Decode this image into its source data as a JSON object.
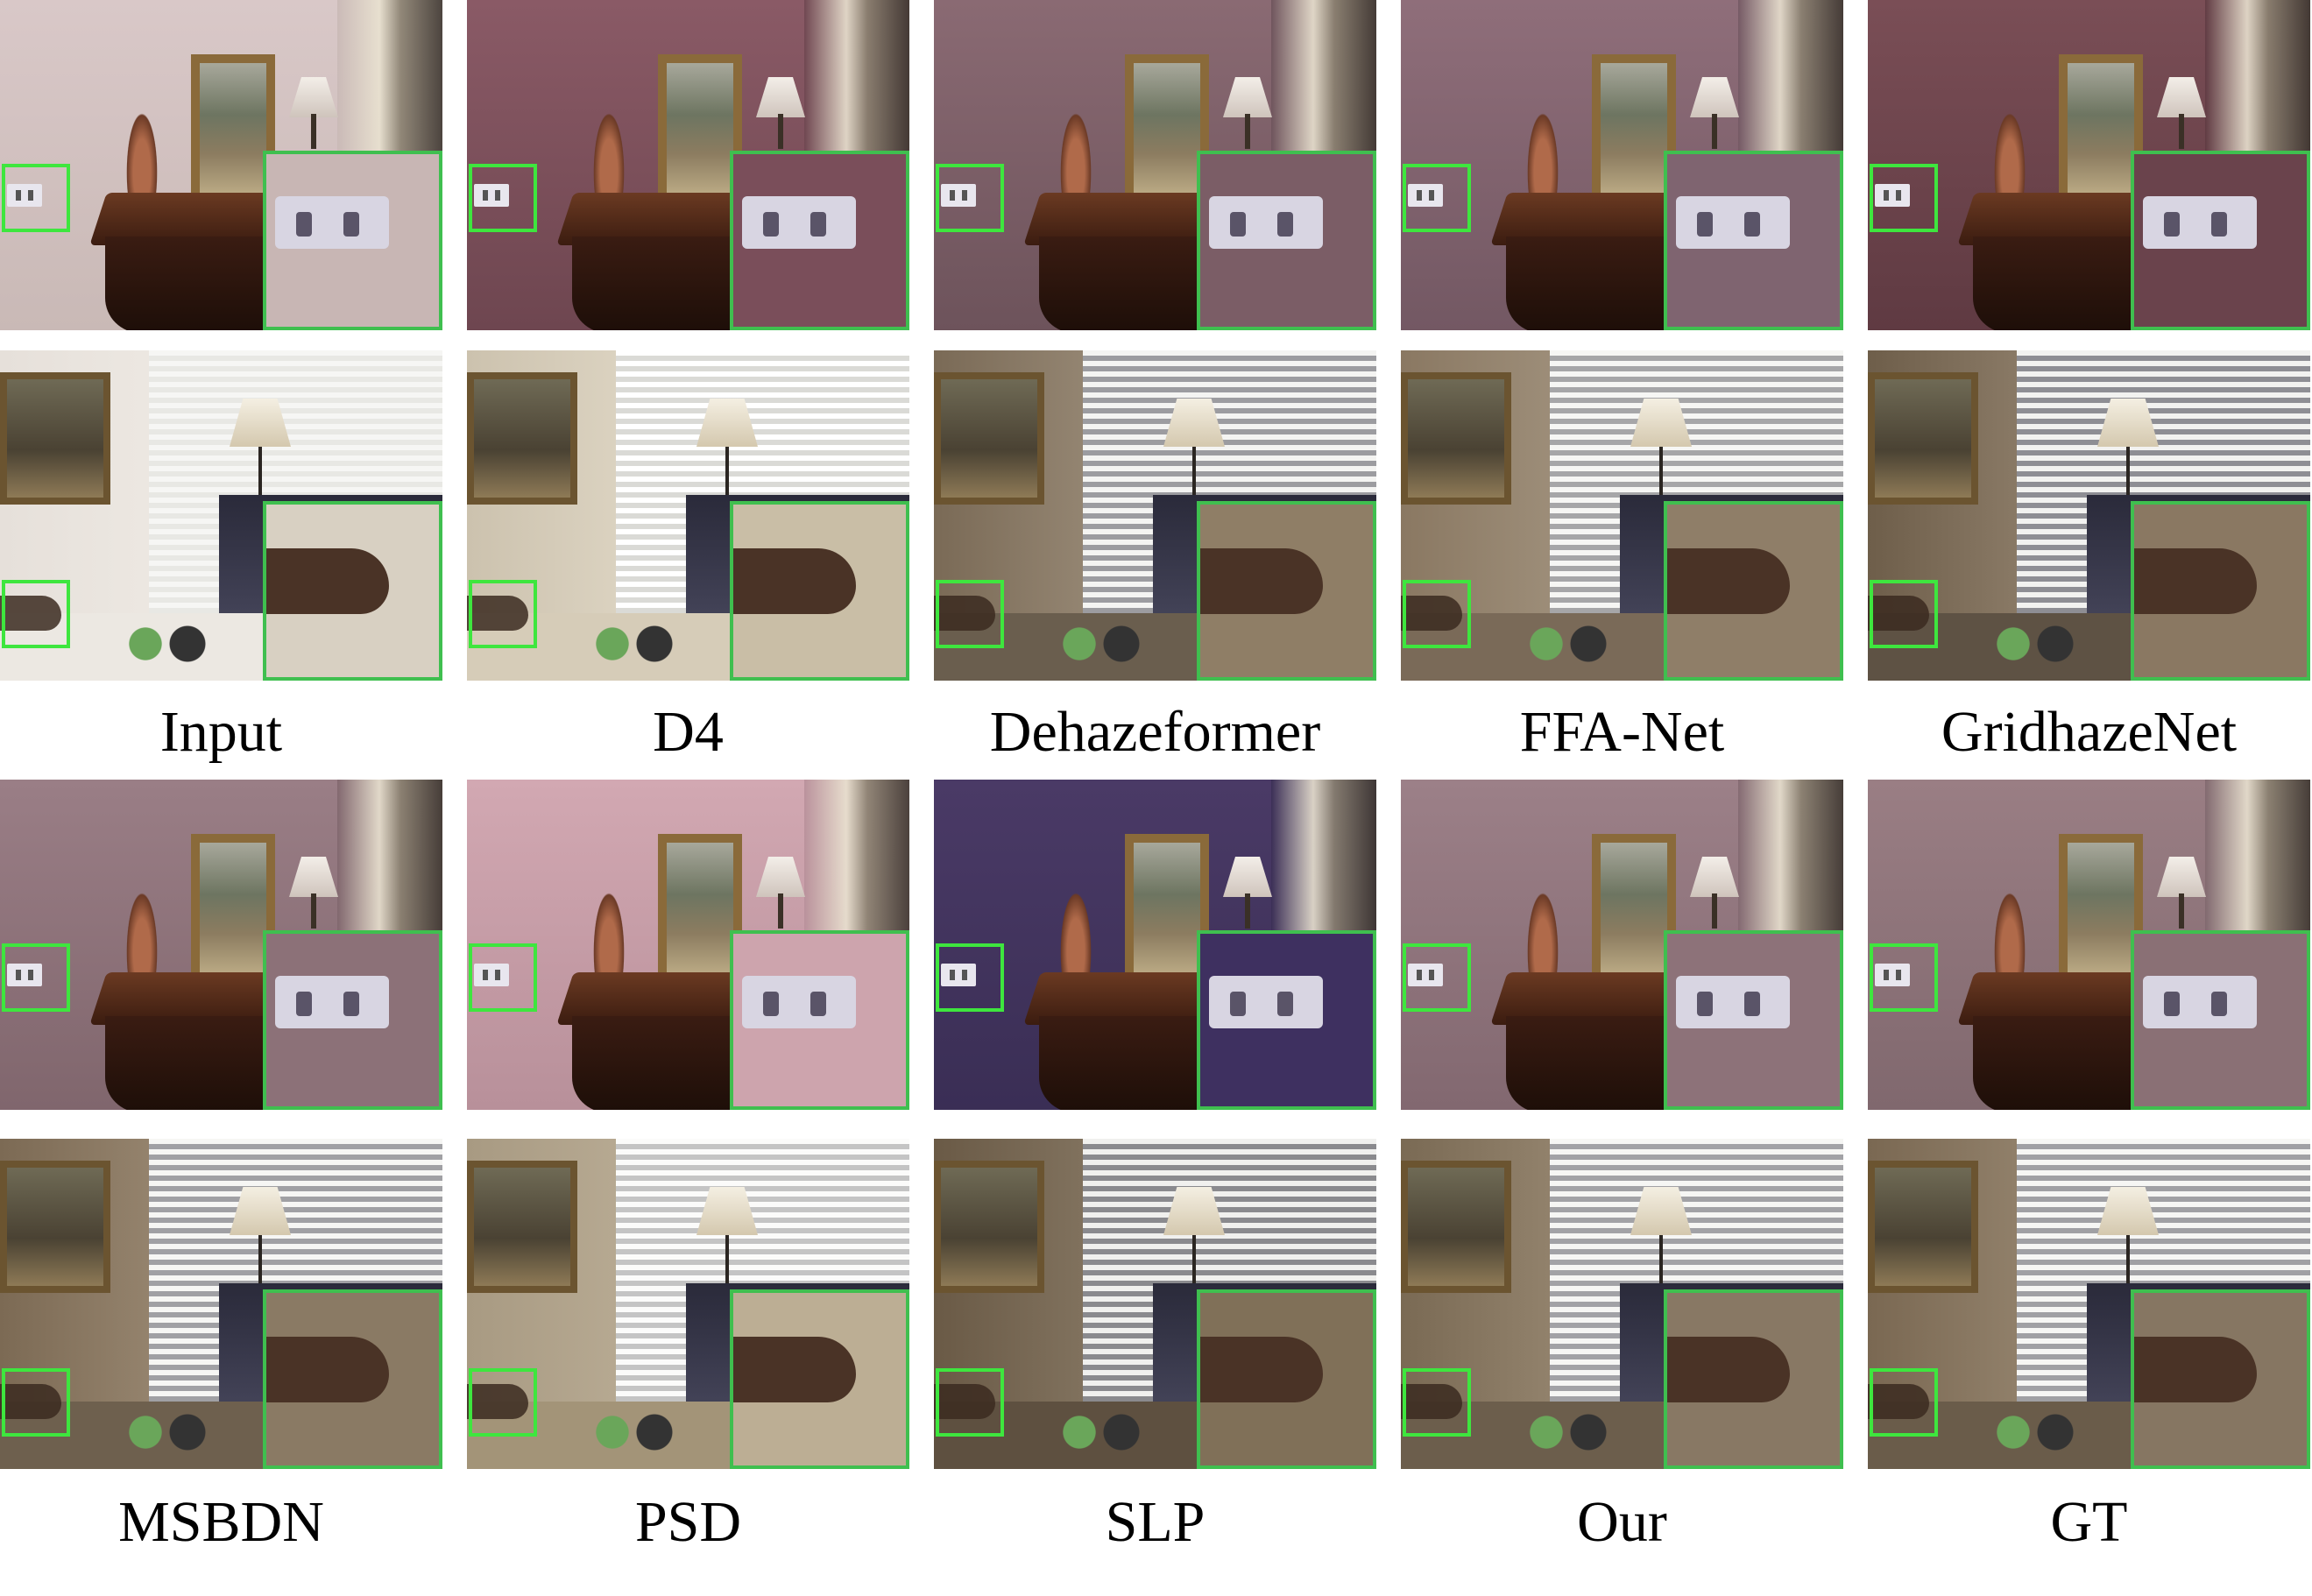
{
  "labels": {
    "top": [
      "Input",
      "D4",
      "Dehazeformer",
      "FFA-Net",
      "GridhazeNet"
    ],
    "bottom": [
      "MSBDN",
      "PSD",
      "SLP",
      "Our",
      "GT"
    ]
  },
  "colors": {
    "inset_border": "#3fbf4f",
    "roi_border": "#3ee63e"
  }
}
